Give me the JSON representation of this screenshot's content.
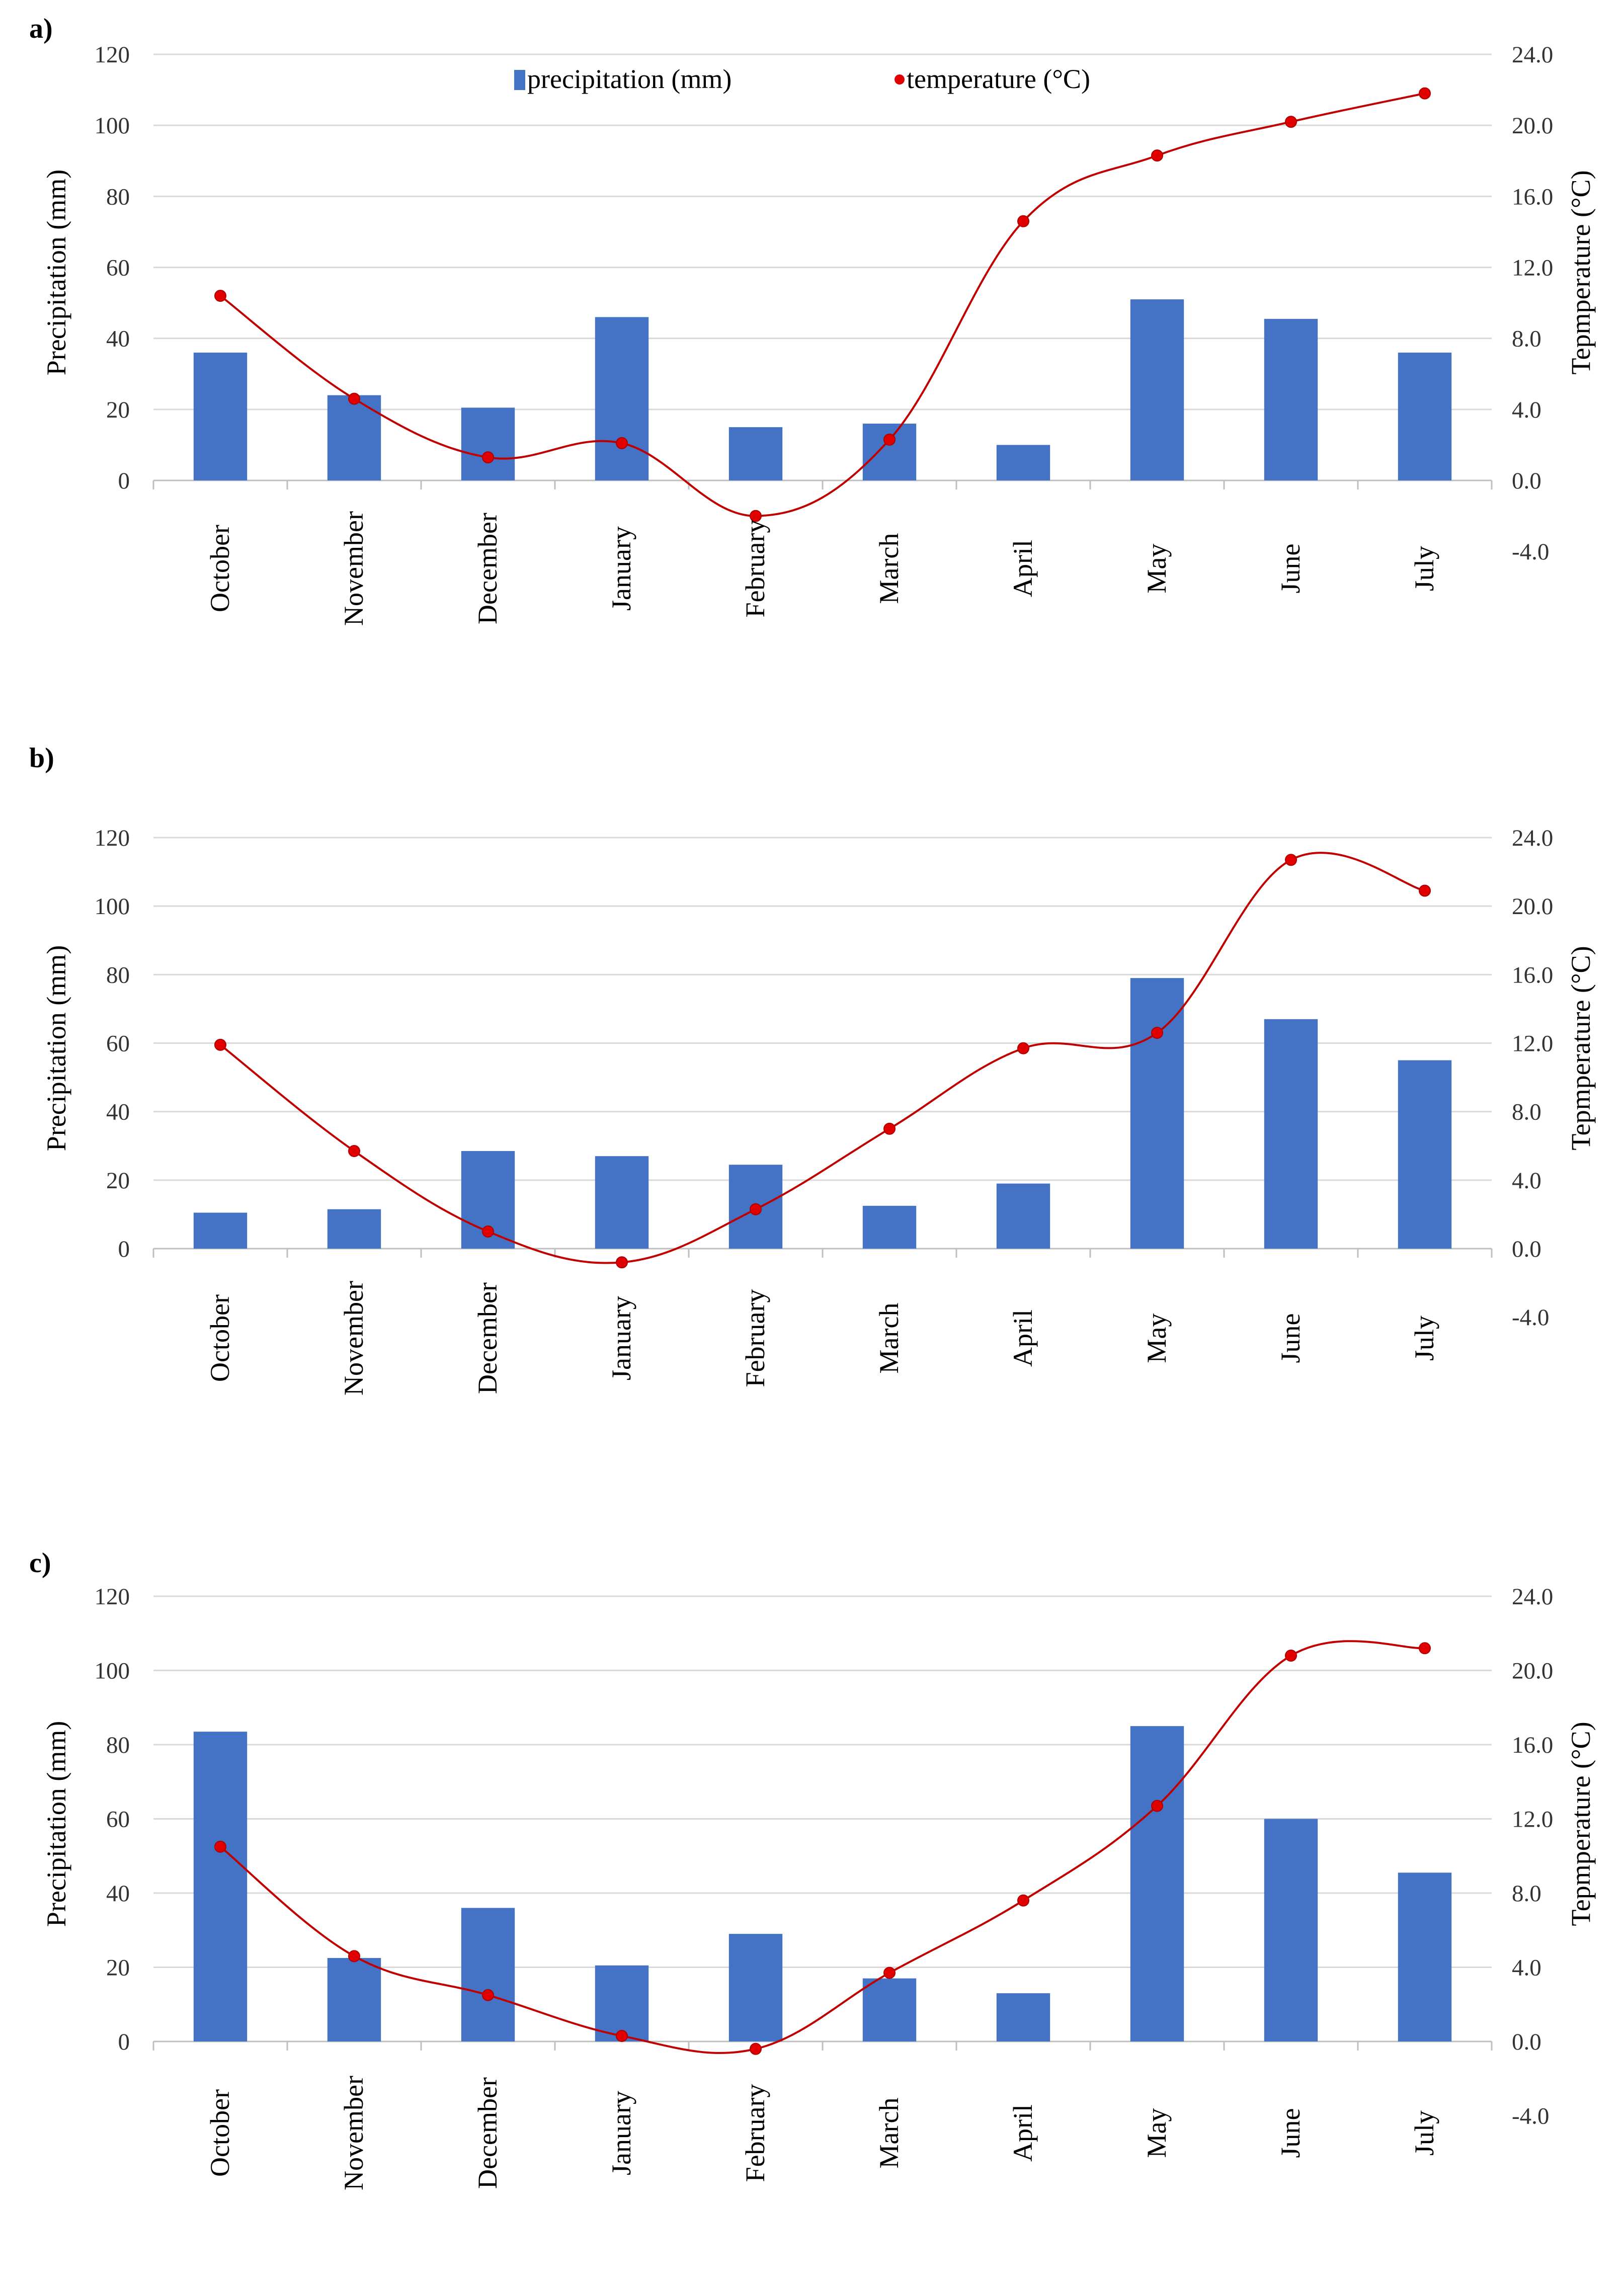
{
  "chart_data": [
    {
      "type": "bar",
      "panel_label": "a)",
      "title": "",
      "categories": [
        "October",
        "November",
        "December",
        "January",
        "February",
        "March",
        "April",
        "May",
        "June",
        "July"
      ],
      "series": [
        {
          "name": "precipitation (mm)",
          "type": "bar",
          "axis": "left",
          "values": [
            36,
            24,
            20.5,
            46,
            15,
            16,
            10,
            51,
            45.5,
            36
          ]
        },
        {
          "name": "temperature (°C)",
          "type": "line",
          "axis": "right",
          "values": [
            10.4,
            4.6,
            1.3,
            2.1,
            -2.0,
            2.3,
            14.6,
            18.3,
            20.2,
            21.8
          ]
        }
      ],
      "ylabel": "Precipitation (mm)",
      "y2label": "Tepmperature (°C)",
      "ylim": [
        0,
        120
      ],
      "y2lim": [
        -4,
        24
      ],
      "yticks": [
        "0",
        "20",
        "40",
        "60",
        "80",
        "100",
        "120"
      ],
      "y2ticks": [
        "-4.0",
        "0.0",
        "4.0",
        "8.0",
        "12.0",
        "16.0",
        "20.0",
        "24.0"
      ],
      "legend_location": "top-center",
      "grid": true,
      "colors": {
        "bar": "#4472c4",
        "line": "#c00000"
      }
    },
    {
      "type": "bar",
      "panel_label": "b)",
      "title": "",
      "categories": [
        "October",
        "November",
        "December",
        "January",
        "February",
        "March",
        "April",
        "May",
        "June",
        "July"
      ],
      "series": [
        {
          "name": "precipitation (mm)",
          "type": "bar",
          "axis": "left",
          "values": [
            10.5,
            11.5,
            28.5,
            27,
            24.5,
            12.5,
            19,
            79,
            67,
            55
          ]
        },
        {
          "name": "temperature (°C)",
          "type": "line",
          "axis": "right",
          "values": [
            11.9,
            5.7,
            1.0,
            -0.8,
            2.3,
            7.0,
            11.7,
            12.6,
            22.7,
            20.9
          ]
        }
      ],
      "ylabel": "Precipitation (mm)",
      "y2label": "Tepmperature (°C)",
      "ylim": [
        0,
        120
      ],
      "y2lim": [
        -4,
        24
      ],
      "yticks": [
        "0",
        "20",
        "40",
        "60",
        "80",
        "100",
        "120"
      ],
      "y2ticks": [
        "-4.0",
        "0.0",
        "4.0",
        "8.0",
        "12.0",
        "16.0",
        "20.0",
        "24.0"
      ],
      "grid": true,
      "colors": {
        "bar": "#4472c4",
        "line": "#c00000"
      }
    },
    {
      "type": "bar",
      "panel_label": "c)",
      "title": "",
      "categories": [
        "October",
        "November",
        "December",
        "January",
        "February",
        "March",
        "April",
        "May",
        "June",
        "July"
      ],
      "series": [
        {
          "name": "precipitation (mm)",
          "type": "bar",
          "axis": "left",
          "values": [
            83.5,
            22.5,
            36,
            20.5,
            29,
            17,
            13,
            85,
            60,
            45.5
          ]
        },
        {
          "name": "temperature (°C)",
          "type": "line",
          "axis": "right",
          "values": [
            10.5,
            4.6,
            2.5,
            0.3,
            -0.4,
            3.7,
            7.6,
            12.7,
            20.8,
            21.2
          ]
        }
      ],
      "ylabel": "Precipitation (mm)",
      "y2label": "Tepmperature (°C)",
      "ylim": [
        0,
        120
      ],
      "y2lim": [
        -4,
        24
      ],
      "yticks": [
        "0",
        "20",
        "40",
        "60",
        "80",
        "100",
        "120"
      ],
      "y2ticks": [
        "-4.0",
        "0.0",
        "4.0",
        "8.0",
        "12.0",
        "16.0",
        "20.0",
        "24.0"
      ],
      "grid": true,
      "colors": {
        "bar": "#4472c4",
        "line": "#c00000"
      }
    }
  ]
}
